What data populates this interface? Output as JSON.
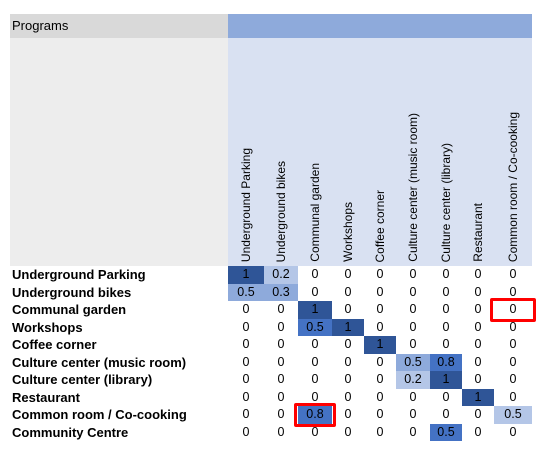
{
  "sheet": {
    "title": "Programs",
    "columns": [
      "Underground Parking",
      "Underground bikes",
      "Communal garden",
      "Workshops",
      "Coffee corner",
      "Culture center (music room)",
      "Culture center (library)",
      "Restaurant",
      "Common room / Co-cooking"
    ],
    "rows": [
      {
        "label": "Underground Parking",
        "values": [
          "1",
          "0.2",
          "0",
          "0",
          "0",
          "0",
          "0",
          "0",
          "0"
        ]
      },
      {
        "label": "Underground bikes",
        "values": [
          "0.5",
          "0.3",
          "0",
          "0",
          "0",
          "0",
          "0",
          "0",
          "0"
        ]
      },
      {
        "label": "Communal garden",
        "values": [
          "0",
          "0",
          "1",
          "0",
          "0",
          "0",
          "0",
          "0",
          "0"
        ]
      },
      {
        "label": "Workshops",
        "values": [
          "0",
          "0",
          "0.5",
          "1",
          "0",
          "0",
          "0",
          "0",
          "0"
        ]
      },
      {
        "label": "Coffee corner",
        "values": [
          "0",
          "0",
          "0",
          "0",
          "1",
          "0",
          "0",
          "0",
          "0"
        ]
      },
      {
        "label": "Culture center (music room)",
        "values": [
          "0",
          "0",
          "0",
          "0",
          "0",
          "0.5",
          "0.8",
          "0",
          "0"
        ]
      },
      {
        "label": "Culture center (library)",
        "values": [
          "0",
          "0",
          "0",
          "0",
          "0",
          "0.2",
          "1",
          "0",
          "0"
        ]
      },
      {
        "label": "Restaurant",
        "values": [
          "0",
          "0",
          "0",
          "0",
          "0",
          "0",
          "0",
          "1",
          "0"
        ]
      },
      {
        "label": "Common room / Co-cooking",
        "values": [
          "0",
          "0",
          "0.8",
          "0",
          "0",
          "0",
          "0",
          "0",
          "0.5"
        ]
      },
      {
        "label": "Community Centre",
        "values": [
          "0",
          "0",
          "0",
          "0",
          "0",
          "0",
          "0.5",
          "0",
          "0"
        ]
      }
    ],
    "colors": {
      "strong": "#2f5597",
      "medium": "#4472c4",
      "light": "#8eaadb",
      "pale": "#b4c6e7",
      "header_band": "#8eaadb",
      "header_panel": "#d9e1f2",
      "highlight": "#ff0000"
    },
    "highlights": [
      {
        "row": 2,
        "col": 8
      },
      {
        "row": 8,
        "col": 2
      }
    ]
  }
}
